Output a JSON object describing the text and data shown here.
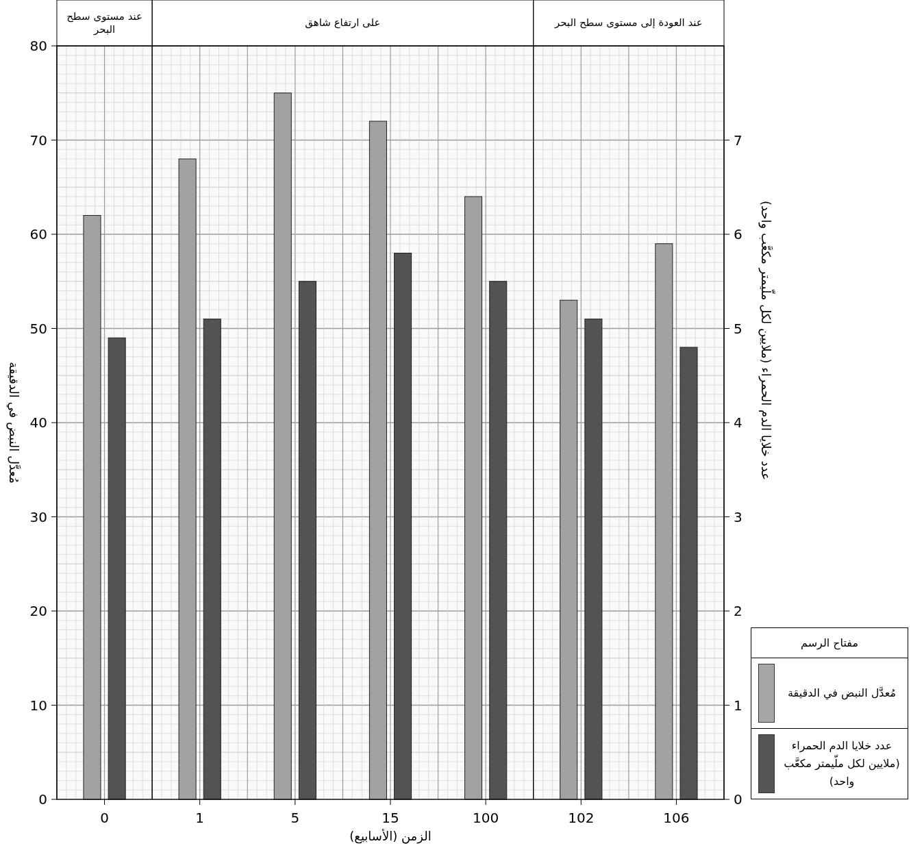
{
  "chart_data": {
    "type": "bar",
    "categories": [
      "0",
      "1",
      "5",
      "15",
      "100",
      "102",
      "106"
    ],
    "xlabel": "الزمن (الأسابيع)",
    "ylabel": "مُعدَّل النبض في الدقيقة",
    "y2label": "عدد خلايا الدم الحمراء (ملايين لكل ملّيمتر مكعَّب واحد)",
    "legend_title": "مفتاح الرسم",
    "series": [
      {
        "name": "مُعدَّل النبض في الدقيقة",
        "color": "#a6a6a6",
        "values": [
          62,
          68,
          75,
          72,
          64,
          53,
          59
        ]
      },
      {
        "name": "عدد خلايا الدم الحمراء (ملايين لكل ملّيمتر مكعَّب واحد)",
        "color": "#555555",
        "axis": "y2",
        "values": [
          4.9,
          5.1,
          5.5,
          5.8,
          5.5,
          5.1,
          4.8
        ]
      }
    ],
    "bands": [
      {
        "axis": "x",
        "from": "0",
        "to": "0",
        "label": "عند مستوى سطح البحر"
      },
      {
        "axis": "x",
        "from": "1",
        "to": "100",
        "label": "على ارتفاع شاهق"
      },
      {
        "axis": "x",
        "from": "102",
        "to": "106",
        "label": "عند العودة إلى مستوى سطح البحر"
      }
    ],
    "ylim": [
      0,
      80
    ],
    "yticks": [
      0,
      10,
      20,
      30,
      40,
      50,
      60,
      70,
      80
    ],
    "y2lim": [
      0,
      8
    ],
    "y2ticks": [
      0,
      1,
      2,
      3,
      4,
      5,
      6,
      7
    ],
    "grid": true,
    "legend": "right"
  }
}
